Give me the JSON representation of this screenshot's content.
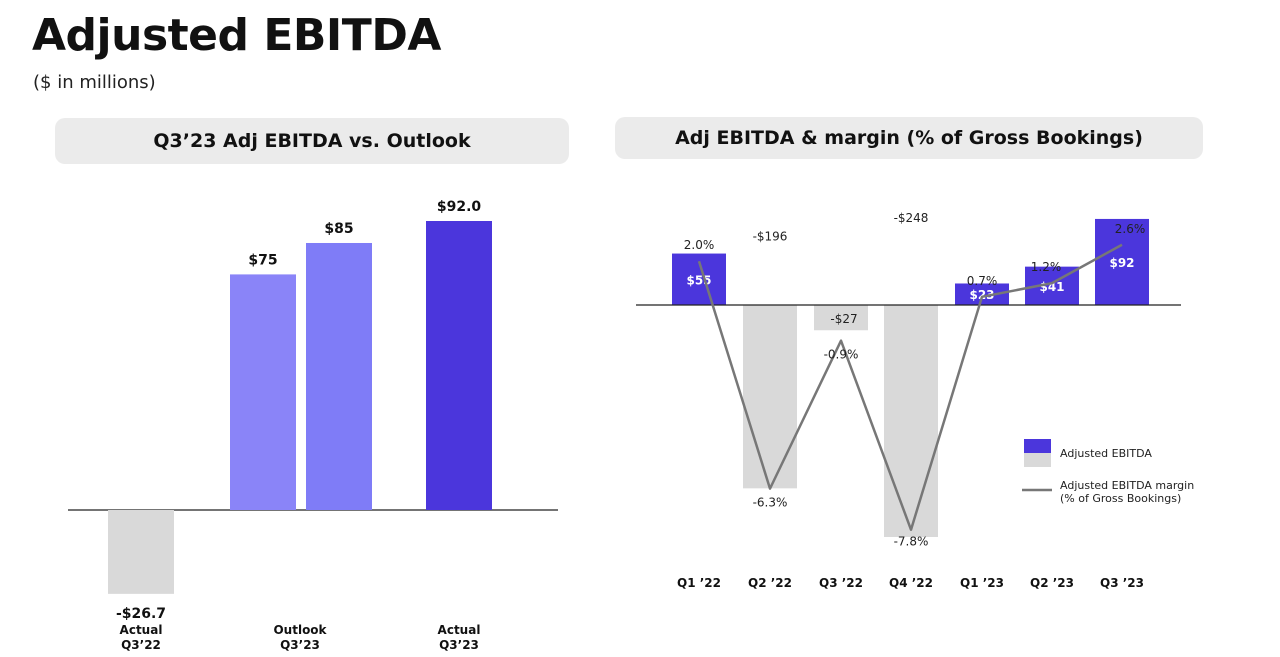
{
  "page": {
    "title": "Adjusted EBITDA",
    "subtitle": "($ in millions)"
  },
  "colors": {
    "positive": "#4b36dc",
    "outlook_low": "#8a84f8",
    "outlook_high": "#7f7cf7",
    "negative": "#d9d9d9",
    "margin_line": "#777777",
    "axis": "#222222"
  },
  "chart_data": [
    {
      "type": "bar",
      "title": "Q3’23 Adj EBITDA vs. Outlook",
      "categories": [
        "Actual\nQ3’22",
        "Outlook\nQ3’23",
        "Actual\nQ3’23"
      ],
      "bars": [
        {
          "group": 0,
          "value": -26.7,
          "label": "-$26.7",
          "color": "negative"
        },
        {
          "group": 1,
          "value": 75,
          "label": "$75",
          "color": "outlook_low"
        },
        {
          "group": 1,
          "value": 85,
          "label": "$85",
          "color": "outlook_high"
        },
        {
          "group": 2,
          "value": 92.0,
          "label": "$92.0",
          "color": "positive"
        }
      ],
      "ylim": [
        -30,
        95
      ]
    },
    {
      "type": "bar",
      "title": "Adj EBITDA & margin (% of Gross Bookings)",
      "categories": [
        "Q1 ’22",
        "Q2 ’22",
        "Q3 ’22",
        "Q4 ’22",
        "Q1 ’23",
        "Q2 ’23",
        "Q3 ’23"
      ],
      "series": [
        {
          "name": "Adjusted EBITDA",
          "values": [
            55,
            -196,
            -27,
            -248,
            23,
            41,
            92
          ],
          "labels": [
            "$55",
            "-$196",
            "-$27",
            "-$248",
            "$23",
            "$41",
            "$92"
          ]
        },
        {
          "name": "Adjusted EBITDA margin (% of Gross Bookings)",
          "values": [
            2.0,
            -6.3,
            -0.9,
            -7.8,
            0.7,
            1.2,
            2.6
          ],
          "labels": [
            "2.0%",
            "-6.3%",
            "-0.9%",
            "-7.8%",
            "0.7%",
            "1.2%",
            "2.6%"
          ]
        }
      ],
      "legend": {
        "position": "right",
        "items": [
          "Adjusted EBITDA",
          "Adjusted EBITDA margin",
          "(% of Gross Bookings)"
        ]
      }
    }
  ]
}
